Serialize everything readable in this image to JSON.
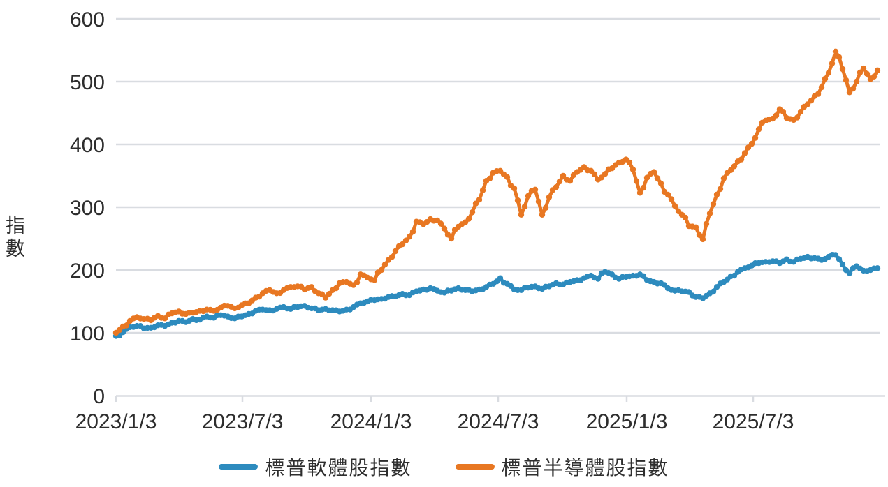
{
  "chart_data": {
    "type": "line",
    "title": "",
    "ylabel": "指數",
    "xlabel": "",
    "ylim": [
      0,
      600
    ],
    "y_ticks": [
      0,
      100,
      200,
      300,
      400,
      500,
      600
    ],
    "x_tick_labels": [
      "2023/1/3",
      "2023/7/3",
      "2024/1/3",
      "2024/7/3",
      "2025/1/3",
      "2025/7/3"
    ],
    "grid": "horizontal",
    "legend_position": "bottom",
    "colors": {
      "grid": "#d9dce1",
      "axis": "#d9dce1",
      "text": "#2e2e2e",
      "background": "#ffffff"
    },
    "series": [
      {
        "name": "標普軟體股指數",
        "color": "#2d8bbe",
        "values": [
          95,
          101,
          109,
          111,
          107,
          108,
          112,
          111,
          116,
          119,
          117,
          122,
          121,
          126,
          124,
          128,
          126,
          123,
          126,
          130,
          135,
          137,
          136,
          138,
          141,
          138,
          141,
          143,
          139,
          136,
          138,
          136,
          134,
          137,
          141,
          147,
          150,
          152,
          154,
          157,
          158,
          162,
          160,
          166,
          169,
          171,
          167,
          164,
          167,
          171,
          168,
          166,
          169,
          173,
          178,
          187,
          178,
          169,
          168,
          172,
          174,
          170,
          174,
          179,
          177,
          181,
          184,
          187,
          191,
          186,
          197,
          193,
          186,
          189,
          191,
          193,
          184,
          181,
          179,
          171,
          167,
          166,
          165,
          157,
          155,
          163,
          173,
          181,
          190,
          197,
          203,
          207,
          211,
          213,
          214,
          211,
          217,
          213,
          218,
          221,
          219,
          216,
          221,
          224,
          209,
          195,
          206,
          199,
          200,
          203
        ]
      },
      {
        "name": "標普半導體股指數",
        "color": "#e87722",
        "values": [
          100,
          110,
          119,
          125,
          122,
          120,
          127,
          123,
          131,
          134,
          130,
          132,
          135,
          137,
          135,
          140,
          143,
          139,
          144,
          147,
          156,
          163,
          168,
          163,
          168,
          173,
          174,
          169,
          173,
          163,
          156,
          168,
          179,
          181,
          176,
          193,
          188,
          184,
          200,
          216,
          230,
          241,
          253,
          277,
          273,
          281,
          279,
          266,
          250,
          269,
          276,
          292,
          312,
          342,
          355,
          358,
          348,
          330,
          288,
          318,
          328,
          288,
          316,
          332,
          350,
          342,
          356,
          364,
          358,
          344,
          353,
          362,
          371,
          376,
          360,
          323,
          347,
          356,
          338,
          320,
          302,
          288,
          270,
          268,
          249,
          290,
          320,
          346,
          359,
          373,
          386,
          401,
          424,
          438,
          441,
          456,
          442,
          439,
          452,
          464,
          477,
          491,
          514,
          548,
          520,
          483,
          500,
          521,
          504,
          518
        ]
      }
    ]
  }
}
